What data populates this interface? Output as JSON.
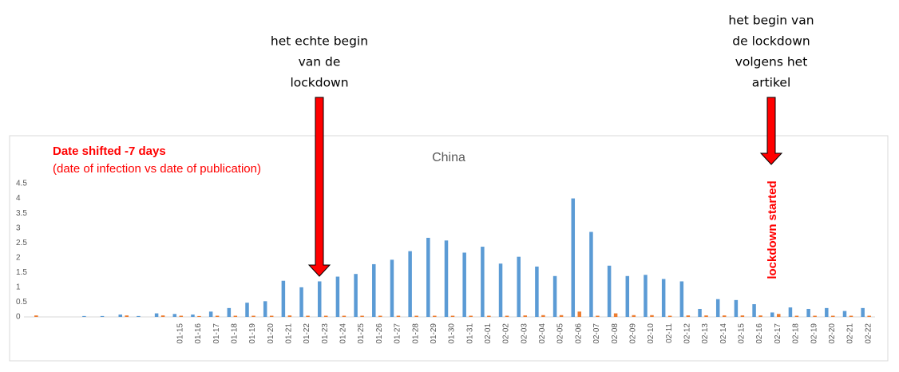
{
  "chart_data": {
    "type": "bar",
    "title": "China",
    "notes": [
      "Date shifted -7 days",
      "(date of infection vs date of publication)"
    ],
    "marker_label": "lockdown started",
    "callouts": [
      {
        "lines": [
          "het echte begin",
          "van de",
          "lockdown"
        ]
      },
      {
        "lines": [
          "het begin van",
          "de lockdown",
          "volgens het",
          "artikel"
        ]
      }
    ],
    "categories": [
      null,
      null,
      null,
      null,
      null,
      null,
      null,
      null,
      "01-15",
      "01-16",
      "01-17",
      "01-18",
      "01-19",
      "01-20",
      "01-21",
      "01-22",
      "01-23",
      "01-24",
      "01-25",
      "01-26",
      "01-27",
      "01-28",
      "01-29",
      "01-30",
      "01-31",
      "02-01",
      "02-02",
      "02-03",
      "02-04",
      "02-05",
      "02-06",
      "02-07",
      "02-08",
      "02-09",
      "02-10",
      "02-11",
      "02-12",
      "02-13",
      "02-14",
      "02-15",
      "02-16",
      "02-17",
      "02-18",
      "02-19",
      "02-20",
      "02-21",
      "02-22"
    ],
    "series": [
      {
        "color": "#5b9bd5",
        "values": [
          0,
          0,
          0,
          0.03,
          0.03,
          0.08,
          0.03,
          0.12,
          0.1,
          0.08,
          0.18,
          0.3,
          0.48,
          0.53,
          1.22,
          1.0,
          1.2,
          1.36,
          1.45,
          1.78,
          1.93,
          2.22,
          2.67,
          2.58,
          2.17,
          2.37,
          1.8,
          2.03,
          1.7,
          1.38,
          4.0,
          2.87,
          1.73,
          1.38,
          1.42,
          1.28,
          1.2,
          0.27,
          0.6,
          0.57,
          0.43,
          0.15,
          0.32,
          0.27,
          0.3,
          0.2,
          0.3
        ]
      },
      {
        "color": "#ed7d31",
        "values": [
          0.05,
          0,
          0,
          0,
          0,
          0.05,
          0,
          0.05,
          0.04,
          0.03,
          0.04,
          0.04,
          0.04,
          0.04,
          0.05,
          0.04,
          0.04,
          0.04,
          0.04,
          0.04,
          0.04,
          0.04,
          0.04,
          0.04,
          0.04,
          0.04,
          0.04,
          0.05,
          0.06,
          0.06,
          0.18,
          0.04,
          0.12,
          0.06,
          0.06,
          0.04,
          0.05,
          0.05,
          0.05,
          0.05,
          0.05,
          0.1,
          0.04,
          0.04,
          0.04,
          0.04,
          0.04
        ]
      }
    ],
    "ylim": [
      0,
      4.5
    ],
    "yticks": [
      0,
      0.5,
      1,
      1.5,
      2,
      2.5,
      3,
      3.5,
      4,
      4.5
    ],
    "grid": false
  }
}
